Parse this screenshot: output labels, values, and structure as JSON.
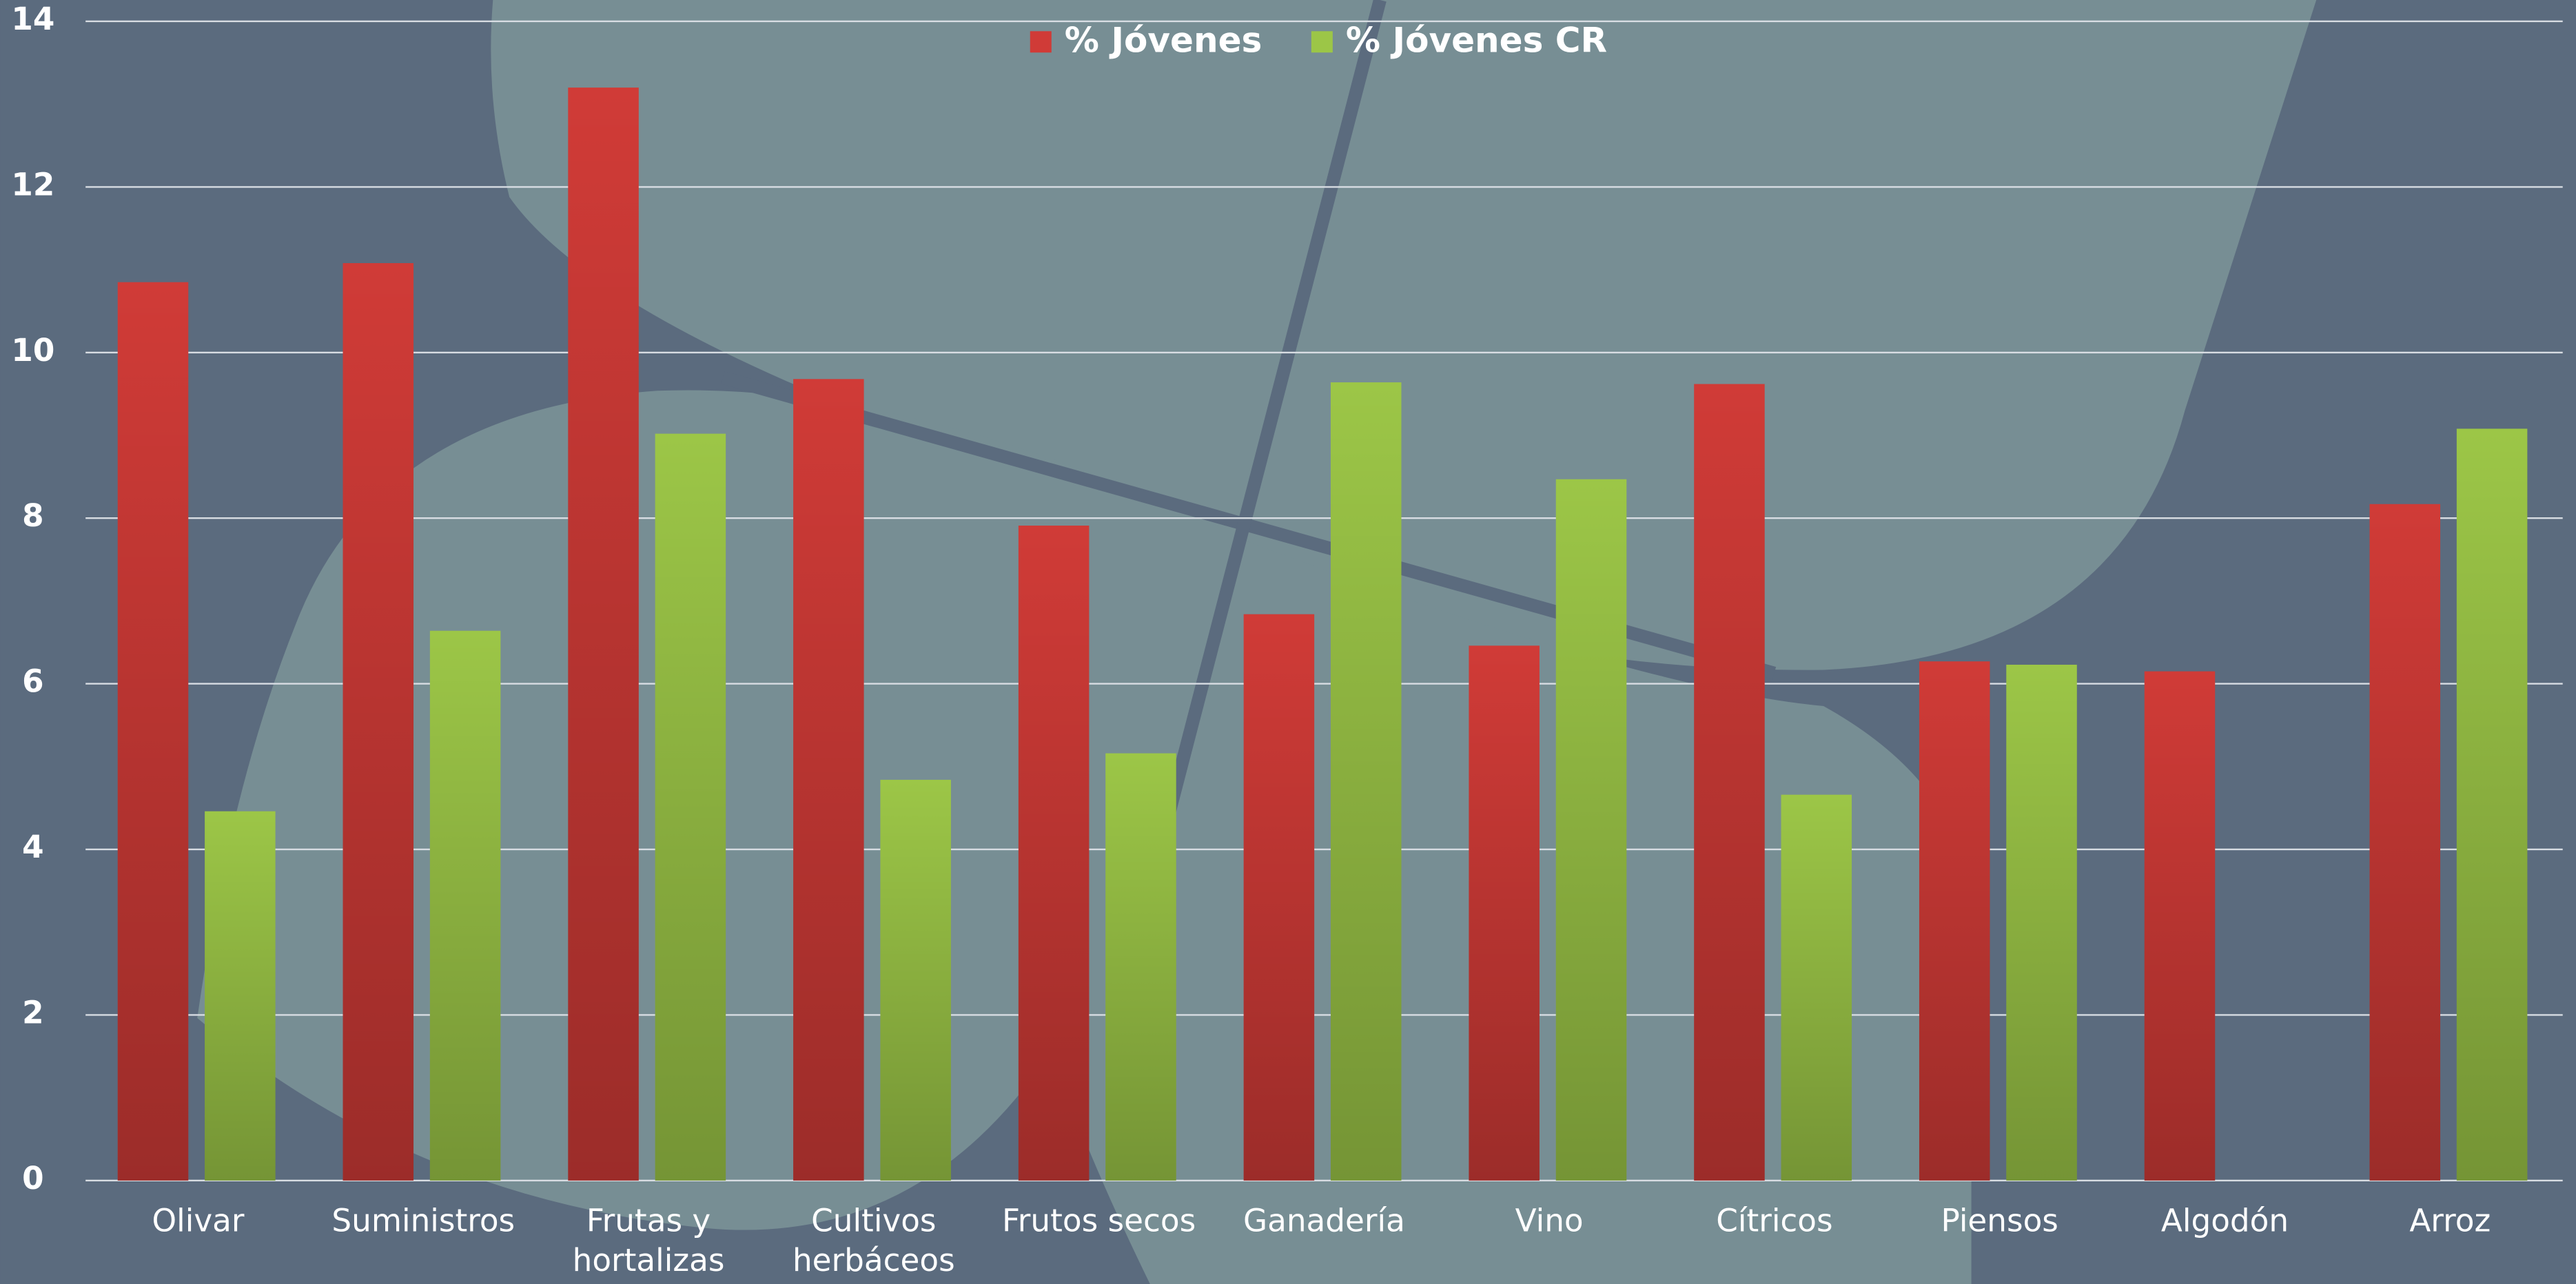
{
  "chart_data": {
    "type": "bar",
    "categories": [
      "Olivar",
      "Suministros",
      "Frutas y hortalizas",
      "Cultivos herbáceos",
      "Frutos secos",
      "Ganadería",
      "Vino",
      "Cítricos",
      "Piensos",
      "Algodón",
      "Arroz"
    ],
    "series": [
      {
        "name": "% Jóvenes",
        "color": "#d03b37",
        "values": [
          10.85,
          11.08,
          13.2,
          9.68,
          7.91,
          6.84,
          6.46,
          9.62,
          6.27,
          6.15,
          8.17
        ]
      },
      {
        "name": "% Jóvenes CR",
        "color": "#9cc647",
        "values": [
          4.46,
          6.64,
          9.02,
          4.84,
          5.16,
          9.64,
          8.47,
          4.66,
          6.23,
          null,
          9.08
        ]
      }
    ],
    "ylim": [
      0,
      14
    ],
    "yticks": [
      0,
      2,
      4,
      6,
      8,
      10,
      12,
      14
    ],
    "grid": true,
    "legend": "top"
  }
}
